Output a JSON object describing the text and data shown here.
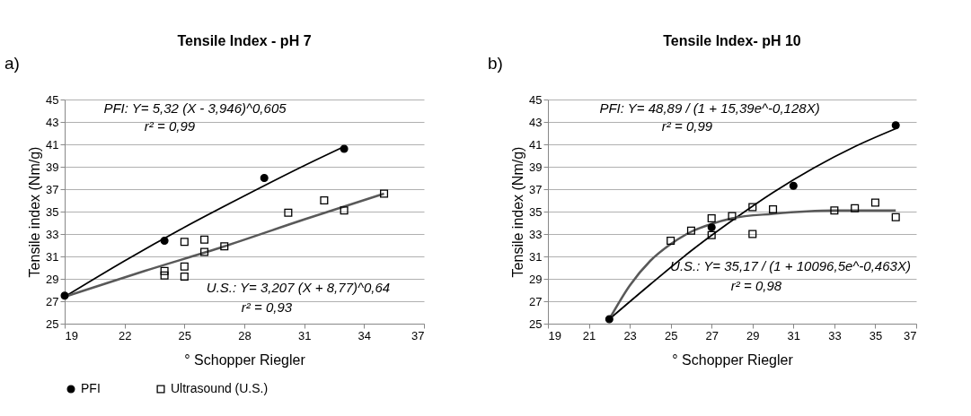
{
  "chart_data": [
    {
      "type": "scatter",
      "title": "Tensile Index - pH 7",
      "xlabel": "° Schopper Riegler",
      "ylabel": "Tensile index (Nm/g)",
      "xlim": [
        19,
        37
      ],
      "xticks": [
        19,
        22,
        25,
        28,
        31,
        34,
        37
      ],
      "ylim": [
        25,
        45
      ],
      "yticks": [
        25,
        27,
        29,
        31,
        33,
        35,
        37,
        39,
        41,
        43,
        45
      ],
      "grid": "y",
      "legend": "bottom",
      "annotations": [
        "a)",
        "PFI: Y= 5,32 (X - 3,946)^0,605",
        "r² = 0,99",
        "U.S.: Y= 3,207 (X + 8,77)^0,64",
        "r² = 0,93"
      ],
      "series": [
        {
          "type": "line",
          "color": "#000000",
          "x": [
            19,
            22,
            25,
            28,
            31,
            33
          ],
          "values": [
            27.4,
            30.6,
            33.6,
            36.4,
            39.1,
            40.8
          ]
        },
        {
          "type": "line",
          "color": "#595959",
          "x": [
            19,
            23,
            27,
            31,
            35
          ],
          "values": [
            27.4,
            29.7,
            31.9,
            34.3,
            36.6
          ]
        },
        {
          "type": "scatter",
          "name": "PFI",
          "color": "#000000",
          "marker": "circle",
          "x": [
            19,
            24,
            29,
            33
          ],
          "values": [
            27.5,
            32.4,
            38.0,
            40.6
          ]
        },
        {
          "type": "scatter",
          "name": "Ultrasound (U.S.)",
          "color": "#000000",
          "marker": "square",
          "x": [
            24,
            24,
            25,
            25,
            25,
            26,
            26,
            27,
            30.2,
            32,
            33,
            35
          ],
          "values": [
            29.7,
            29.3,
            32.3,
            30.1,
            29.2,
            32.5,
            31.4,
            31.9,
            34.9,
            36.0,
            35.1,
            36.6
          ]
        }
      ]
    },
    {
      "type": "scatter",
      "title": "Tensile Index- pH 10",
      "xlabel": "° Schopper Riegler",
      "ylabel": "Tensile index (Nm/g)",
      "xlim": [
        19,
        37
      ],
      "xticks": [
        19,
        21,
        23,
        25,
        27,
        29,
        31,
        33,
        35,
        37
      ],
      "ylim": [
        25,
        45
      ],
      "yticks": [
        25,
        27,
        29,
        31,
        33,
        35,
        37,
        39,
        41,
        43,
        45
      ],
      "grid": "y",
      "legend": "bottom",
      "annotations": [
        "b)",
        "PFI: Y= 48,89 / (1 + 15,39e^-0,128X)",
        "r² = 0,99",
        "U.S.: Y= 35,17 / (1 + 10096,5e^-0,463X)",
        "r² = 0,98"
      ],
      "series": [
        {
          "type": "line",
          "color": "#000000",
          "x": [
            22,
            24,
            26,
            28,
            30,
            32,
            34,
            36
          ],
          "values": [
            25.4,
            28.5,
            31.5,
            34.2,
            36.7,
            38.9,
            40.8,
            42.4
          ]
        },
        {
          "type": "line",
          "color": "#595959",
          "x": [
            22,
            23,
            24,
            25,
            26,
            27,
            28,
            30,
            33,
            36
          ],
          "values": [
            25.4,
            28.4,
            30.6,
            32.1,
            33.2,
            33.9,
            34.4,
            34.8,
            35.1,
            35.1
          ]
        },
        {
          "type": "scatter",
          "name": "PFI",
          "color": "#000000",
          "marker": "circle",
          "x": [
            22,
            27,
            31,
            36
          ],
          "values": [
            25.4,
            33.6,
            37.3,
            42.7
          ]
        },
        {
          "type": "scatter",
          "name": "Ultrasound (U.S.)",
          "color": "#000000",
          "marker": "square",
          "x": [
            25,
            26,
            27,
            27,
            28,
            29,
            29,
            30,
            33,
            34,
            35,
            36
          ],
          "values": [
            32.4,
            33.3,
            34.4,
            32.9,
            34.6,
            35.4,
            33.0,
            35.2,
            35.1,
            35.3,
            35.8,
            34.5
          ]
        }
      ]
    }
  ]
}
